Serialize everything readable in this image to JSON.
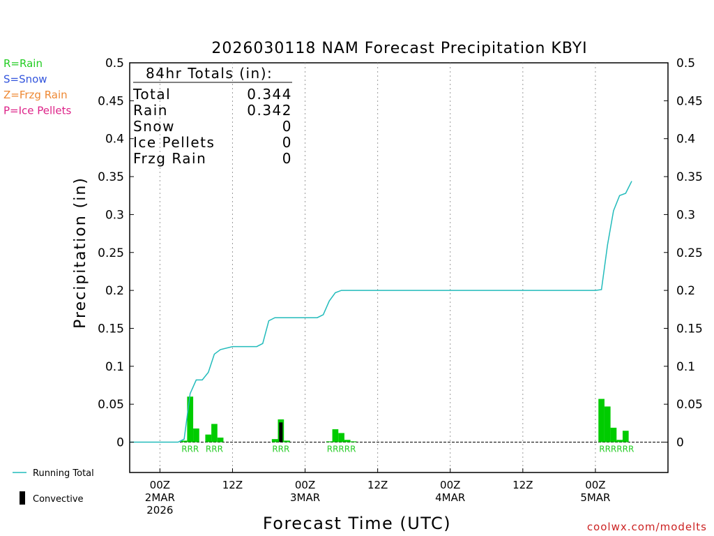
{
  "chart_data": {
    "type": "bar",
    "title": "2026030118 NAM Forecast Precipitation KBYI",
    "xlabel": "Forecast Time (UTC)",
    "ylabel": "Precipitation (in)",
    "ylim": [
      -0.04,
      0.5
    ],
    "xlim_hours": [
      -5,
      84
    ],
    "y_ticks": [
      "0",
      "0.05",
      "0.1",
      "0.15",
      "0.2",
      "0.25",
      "0.3",
      "0.35",
      "0.4",
      "0.45",
      "0.5"
    ],
    "x_ticks": [
      {
        "hour": 0,
        "lines": [
          "00Z",
          "2MAR",
          "2026"
        ]
      },
      {
        "hour": 12,
        "lines": [
          "12Z"
        ]
      },
      {
        "hour": 24,
        "lines": [
          "00Z",
          "3MAR"
        ]
      },
      {
        "hour": 36,
        "lines": [
          "12Z"
        ]
      },
      {
        "hour": 48,
        "lines": [
          "00Z",
          "4MAR"
        ]
      },
      {
        "hour": 60,
        "lines": [
          "12Z"
        ]
      },
      {
        "hour": 72,
        "lines": [
          "00Z",
          "5MAR"
        ]
      }
    ],
    "grid_vertical_hours": [
      0,
      12,
      24,
      36,
      48,
      60,
      72
    ],
    "precip_bars": [
      {
        "hour": 4,
        "value": 0.002
      },
      {
        "hour": 5,
        "value": 0.06
      },
      {
        "hour": 6,
        "value": 0.018
      },
      {
        "hour": 8,
        "value": 0.01
      },
      {
        "hour": 9,
        "value": 0.024
      },
      {
        "hour": 10,
        "value": 0.006
      },
      {
        "hour": 19,
        "value": 0.004
      },
      {
        "hour": 20,
        "value": 0.03
      },
      {
        "hour": 21,
        "value": 0.002
      },
      {
        "hour": 28,
        "value": 0.001
      },
      {
        "hour": 29,
        "value": 0.017
      },
      {
        "hour": 30,
        "value": 0.012
      },
      {
        "hour": 31,
        "value": 0.003
      },
      {
        "hour": 32,
        "value": 0.001
      },
      {
        "hour": 73,
        "value": 0.057
      },
      {
        "hour": 74,
        "value": 0.047
      },
      {
        "hour": 75,
        "value": 0.019
      },
      {
        "hour": 76,
        "value": 0.003
      },
      {
        "hour": 77,
        "value": 0.015
      }
    ],
    "convective_bars": [
      {
        "hour": 20,
        "value": 0.026
      }
    ],
    "running_total": {
      "hours": [
        -5,
        3,
        3.5,
        4,
        5,
        6,
        7,
        8,
        9,
        10,
        12,
        16,
        17,
        18,
        19,
        20,
        26,
        27,
        28,
        29,
        30,
        31,
        72,
        73,
        74,
        75,
        76,
        77
      ],
      "values": [
        0,
        0,
        0.002,
        0.004,
        0.064,
        0.082,
        0.082,
        0.092,
        0.116,
        0.122,
        0.126,
        0.126,
        0.13,
        0.16,
        0.164,
        0.164,
        0.164,
        0.168,
        0.186,
        0.197,
        0.2,
        0.2,
        0.2,
        0.201,
        0.26,
        0.305,
        0.325,
        0.328
      ]
    },
    "running_total_end": {
      "hour": 78,
      "value": 0.344
    },
    "ptype_labels": [
      {
        "hour": 5,
        "text": "RRR"
      },
      {
        "hour": 9,
        "text": "RRR"
      },
      {
        "hour": 20,
        "text": "RRR"
      },
      {
        "hour": 30,
        "text": "RRRRR"
      },
      {
        "hour": 75.5,
        "text": "RRRRRR"
      }
    ],
    "totals_box": {
      "heading": "84hr Totals (in):",
      "rows": [
        {
          "label": "Total",
          "value": "0.344"
        },
        {
          "label": "Rain",
          "value": "0.342"
        },
        {
          "label": "Snow",
          "value": "0"
        },
        {
          "label": "Ice Pellets",
          "value": "0"
        },
        {
          "label": "Frzg Rain",
          "value": "0"
        }
      ]
    },
    "ptype_legend": [
      {
        "text": "R=Rain",
        "color": "#22cc22"
      },
      {
        "text": "S=Snow",
        "color": "#3355dd"
      },
      {
        "text": "Z=Frzg Rain",
        "color": "#ee8833"
      },
      {
        "text": "P=Ice Pellets",
        "color": "#dd2288"
      }
    ],
    "series_legend": [
      {
        "text": "Running Total",
        "color": "#22bbbb"
      },
      {
        "text": "Convective",
        "color": "#000000"
      }
    ],
    "colors": {
      "bar": "#00cc00",
      "convective": "#000000",
      "running_total": "#22bbbb",
      "ptype_label": "#22cc22"
    },
    "credit": "coolwx.com/modelts"
  }
}
